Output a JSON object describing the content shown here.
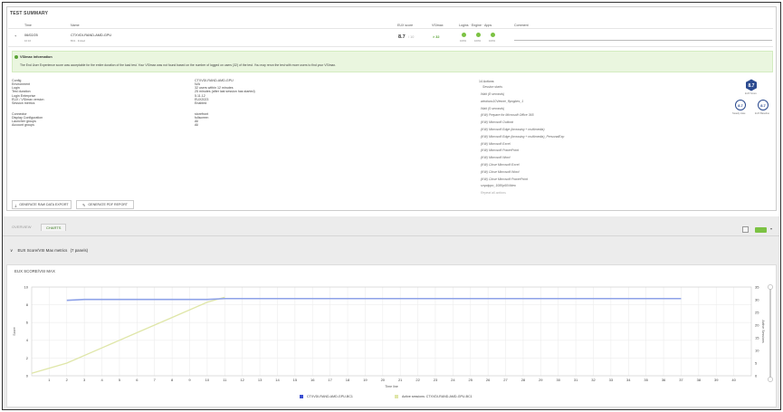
{
  "summary": {
    "title": "TEST SUMMARY",
    "headers": {
      "time": "Time",
      "name": "Name",
      "eux": "EUX score",
      "vsimax": "VSImax",
      "logins": "Logins · Engine · Apps",
      "comment": "Comment"
    },
    "row": {
      "expand": "+",
      "date": "06/02/25",
      "time": "10:16",
      "name": "CTXVDI-RAND-AMD-GPU",
      "sub": "BC1 · limited",
      "eux": "8.7",
      "eux_max": "/ 10",
      "vsimax": "> 32",
      "pct1": "100%",
      "pct2": "100%",
      "pct3": "100%"
    }
  },
  "banner": {
    "title": "VSImax information",
    "text": "The End User Experience score was acceptable for the entire duration of the load test. Your VSImax was not found based on the number of logged on users (32) of the test. You may rerun the test with more users to find your VSImax."
  },
  "config_left": [
    {
      "k": "Config",
      "v": "CTXVDI-RAND-AMD-GPU"
    },
    {
      "k": "Environment",
      "v": "N/A"
    },
    {
      "k": "Login",
      "v": "32 users within 12 minutes"
    },
    {
      "k": "Test duration",
      "v": "25 minutes (after last session has started)"
    },
    {
      "k": "Login Enterprise",
      "v": "5.11.12"
    },
    {
      "k": "EUX / VSImax version",
      "v": "EUX2023"
    },
    {
      "k": "Session metrics",
      "v": "Enabled"
    }
  ],
  "config_left2": [
    {
      "k": "Connector",
      "v": "storefront"
    },
    {
      "k": "Display Configuration",
      "v": "fullscreen"
    },
    {
      "k": "Launcher groups",
      "v": "All"
    },
    {
      "k": "Account groups",
      "v": "All"
    }
  ],
  "actions": {
    "title": "14 Actions",
    "session_starts": "Session starts",
    "items": [
      "Wait (8 seconds)",
      "windows10Viewer_ffpngbes_1",
      "Wait (5 seconds)",
      "(KW) Prepare for Microsoft Office 365",
      "(KW) Microsoft Outlook",
      "(KW) Microsoft Edge (browsing + multimedia)",
      "(KW) Microsoft Edge (browsing + multimedia)_PersonalExp",
      "(KW) Microsoft Excel",
      "(KW) Microsoft PowerPoint",
      "(KW) Microsoft Word",
      "(KW) Close Microsoft Excel",
      "(KW) Close Microsoft Word",
      "(KW) Close Microsoft PowerPoint",
      "smpdppo_1080p60Video"
    ],
    "repeat": "Repeat all actions"
  },
  "scores": {
    "eux": "8.7",
    "eux_caption": "EUX Score",
    "steady": "8.7",
    "steady_caption": "Steady state",
    "baseline": "8.7",
    "baseline_caption": "EUX Baseline"
  },
  "buttons": {
    "raw": "GENERATE RAW DATA EXPORT",
    "pdf": "GENERATE PDF REPORT"
  },
  "tabs": {
    "overview": "OVERVIEW",
    "charts": "CHARTS"
  },
  "panel": {
    "title": "EUX Score/VSI Max metrics",
    "count": "(7 panels)",
    "chevron": "∨"
  },
  "colors": {
    "eux_line": "#8ea2e8",
    "active_line": "#dfe6a8",
    "accent_green": "#7cc243",
    "navy": "#2b4a8f"
  },
  "chart_data": {
    "type": "line",
    "title": "EUX SCORE/VSI MAX",
    "xlabel": "Time line",
    "ylabel": "Score",
    "y2label": "Active Sessions",
    "xlim": [
      0,
      41
    ],
    "xticks": [
      1,
      2,
      3,
      4,
      5,
      6,
      7,
      8,
      9,
      10,
      11,
      12,
      13,
      14,
      15,
      16,
      17,
      18,
      19,
      20,
      21,
      22,
      23,
      24,
      25,
      26,
      27,
      28,
      29,
      30,
      31,
      32,
      33,
      34,
      35,
      36,
      37,
      38,
      39,
      40
    ],
    "ylim": [
      0,
      10
    ],
    "yticks": [
      0,
      2,
      4,
      6,
      8,
      10
    ],
    "y2lim": [
      0,
      35
    ],
    "y2ticks": [
      0,
      5,
      10,
      15,
      20,
      25,
      30,
      35
    ],
    "series": [
      {
        "name": "CTXVDI-RAND-AMD-GPU-BC1",
        "axis": "left",
        "x": [
          2,
          3,
          10,
          11,
          37
        ],
        "y": [
          8.5,
          8.6,
          8.6,
          8.7,
          8.7
        ]
      },
      {
        "name": "Active sessions: CTXVDI-RAND-AMD-GPU-BC1",
        "axis": "right",
        "x": [
          0,
          2,
          4,
          6,
          8,
          10,
          11
        ],
        "y": [
          1,
          5,
          11,
          17,
          23,
          29,
          31
        ]
      }
    ],
    "legend_position": "bottom-center",
    "grid": true
  }
}
